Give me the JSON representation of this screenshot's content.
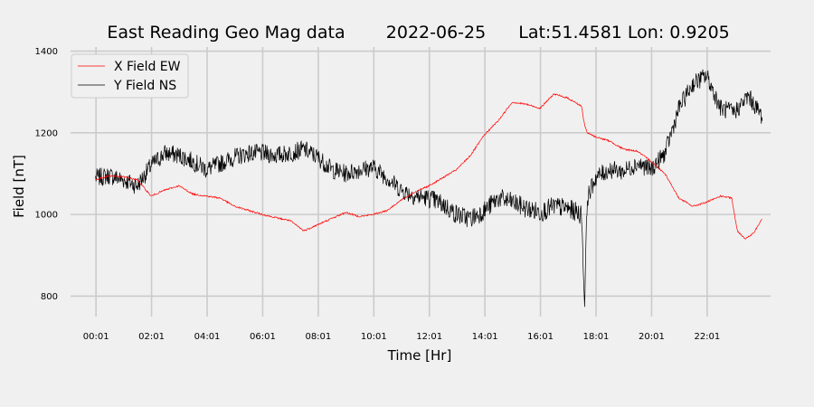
{
  "chart_data": {
    "type": "line",
    "title": {
      "main": "East Reading Geo Mag data",
      "date": "2022-06-25",
      "location": "Lat:51.4581  Lon: 0.9205"
    },
    "xlabel": "Time  [Hr]",
    "ylabel": "Field  [nT]",
    "xlim": [
      -0.9,
      24.3
    ],
    "ylim": [
      750,
      1410
    ],
    "x_ticks": [
      {
        "hour": 0.0167,
        "label": "00:01"
      },
      {
        "hour": 2.0167,
        "label": "02:01"
      },
      {
        "hour": 4.0167,
        "label": "04:01"
      },
      {
        "hour": 6.0167,
        "label": "06:01"
      },
      {
        "hour": 8.0167,
        "label": "08:01"
      },
      {
        "hour": 10.0167,
        "label": "10:01"
      },
      {
        "hour": 12.0167,
        "label": "12:01"
      },
      {
        "hour": 14.0167,
        "label": "14:01"
      },
      {
        "hour": 16.0167,
        "label": "16:01"
      },
      {
        "hour": 18.0167,
        "label": "18:01"
      },
      {
        "hour": 20.0167,
        "label": "20:01"
      },
      {
        "hour": 22.0167,
        "label": "22:01"
      }
    ],
    "y_ticks": [
      800,
      1000,
      1200,
      1400
    ],
    "grid": true,
    "legend": "top-left",
    "series": [
      {
        "name": "X Field EW",
        "color": "#ff0000",
        "x": [
          0.0,
          0.5,
          1.0,
          1.5,
          2.0,
          2.5,
          3.0,
          3.5,
          4.0,
          4.5,
          5.0,
          5.5,
          6.0,
          6.5,
          7.0,
          7.5,
          8.0,
          8.5,
          9.0,
          9.5,
          10.0,
          10.5,
          11.0,
          11.5,
          12.0,
          12.5,
          13.0,
          13.5,
          14.0,
          14.5,
          15.0,
          15.5,
          16.0,
          16.5,
          17.0,
          17.5,
          17.55,
          17.6,
          17.7,
          18.0,
          18.5,
          19.0,
          19.5,
          20.0,
          20.5,
          21.0,
          21.5,
          22.0,
          22.5,
          22.9,
          23.1,
          23.4,
          23.7,
          24.0
        ],
        "y": [
          1085,
          1095,
          1092,
          1085,
          1045,
          1060,
          1070,
          1050,
          1045,
          1040,
          1020,
          1010,
          1000,
          992,
          985,
          960,
          975,
          990,
          1005,
          995,
          1000,
          1010,
          1035,
          1055,
          1070,
          1090,
          1110,
          1145,
          1195,
          1230,
          1275,
          1270,
          1260,
          1295,
          1285,
          1265,
          1240,
          1220,
          1200,
          1190,
          1180,
          1160,
          1155,
          1130,
          1100,
          1040,
          1020,
          1030,
          1045,
          1040,
          960,
          940,
          955,
          990
        ]
      },
      {
        "name": "Y Field NS",
        "color": "#000000",
        "x": [
          0.0,
          0.5,
          1.0,
          1.5,
          2.0,
          2.5,
          3.0,
          3.5,
          4.0,
          4.5,
          5.0,
          5.5,
          6.0,
          6.5,
          7.0,
          7.5,
          8.0,
          8.5,
          9.0,
          9.5,
          10.0,
          10.5,
          11.0,
          11.5,
          12.0,
          12.5,
          13.0,
          13.5,
          14.0,
          14.5,
          15.0,
          15.5,
          16.0,
          16.5,
          17.0,
          17.5,
          17.6,
          17.7,
          18.0,
          18.5,
          19.0,
          19.5,
          20.0,
          20.5,
          21.0,
          21.5,
          22.0,
          22.5,
          23.0,
          23.5,
          24.0
        ],
        "y": [
          1090,
          1095,
          1085,
          1070,
          1120,
          1150,
          1145,
          1130,
          1110,
          1125,
          1140,
          1150,
          1150,
          1145,
          1150,
          1160,
          1140,
          1110,
          1100,
          1110,
          1115,
          1090,
          1060,
          1045,
          1040,
          1025,
          1000,
          990,
          1010,
          1040,
          1030,
          1015,
          1005,
          1020,
          1015,
          1000,
          775,
          1040,
          1090,
          1110,
          1105,
          1125,
          1110,
          1150,
          1260,
          1320,
          1340,
          1260,
          1250,
          1290,
          1240
        ]
      }
    ]
  }
}
